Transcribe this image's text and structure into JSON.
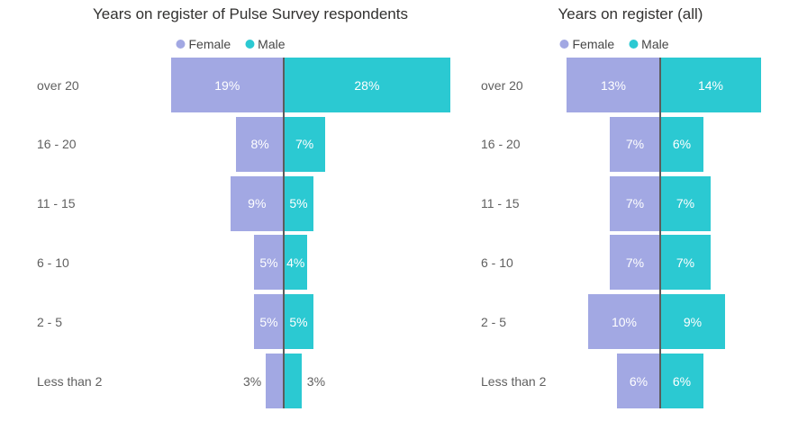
{
  "page": {
    "background": "#ffffff"
  },
  "chart_data": [
    {
      "type": "bar",
      "variant": "diverging-tornado",
      "title": "Years on register of Pulse Survey respondents",
      "categories": [
        "over 20",
        "16 - 20",
        "11 - 15",
        "6 - 10",
        "2 - 5",
        "Less than 2"
      ],
      "series": [
        {
          "name": "Female",
          "color": "#a2a8e3",
          "values": [
            19,
            8,
            9,
            5,
            5,
            3
          ]
        },
        {
          "name": "Male",
          "color": "#2bc9d2",
          "values": [
            28,
            7,
            5,
            4,
            5,
            3
          ]
        }
      ],
      "unit": "%",
      "legend_position": "top-center",
      "value_labels": "inside bars, outside when bar too narrow",
      "center_axis_color": "#5c5c5c",
      "label_text_colors": {
        "inside": "#ffffff",
        "outside": "#606060"
      }
    },
    {
      "type": "bar",
      "variant": "diverging-tornado",
      "title": "Years on register (all)",
      "categories": [
        "over 20",
        "16 - 20",
        "11 - 15",
        "6 - 10",
        "2 - 5",
        "Less than 2"
      ],
      "series": [
        {
          "name": "Female",
          "color": "#a2a8e3",
          "values": [
            13,
            7,
            7,
            7,
            10,
            6
          ]
        },
        {
          "name": "Male",
          "color": "#2bc9d2",
          "values": [
            14,
            6,
            7,
            7,
            9,
            6
          ]
        }
      ],
      "unit": "%",
      "legend_position": "top-center",
      "value_labels": "inside bars",
      "center_axis_color": "#5c5c5c",
      "label_text_colors": {
        "inside": "#ffffff",
        "outside": "#606060"
      }
    }
  ]
}
